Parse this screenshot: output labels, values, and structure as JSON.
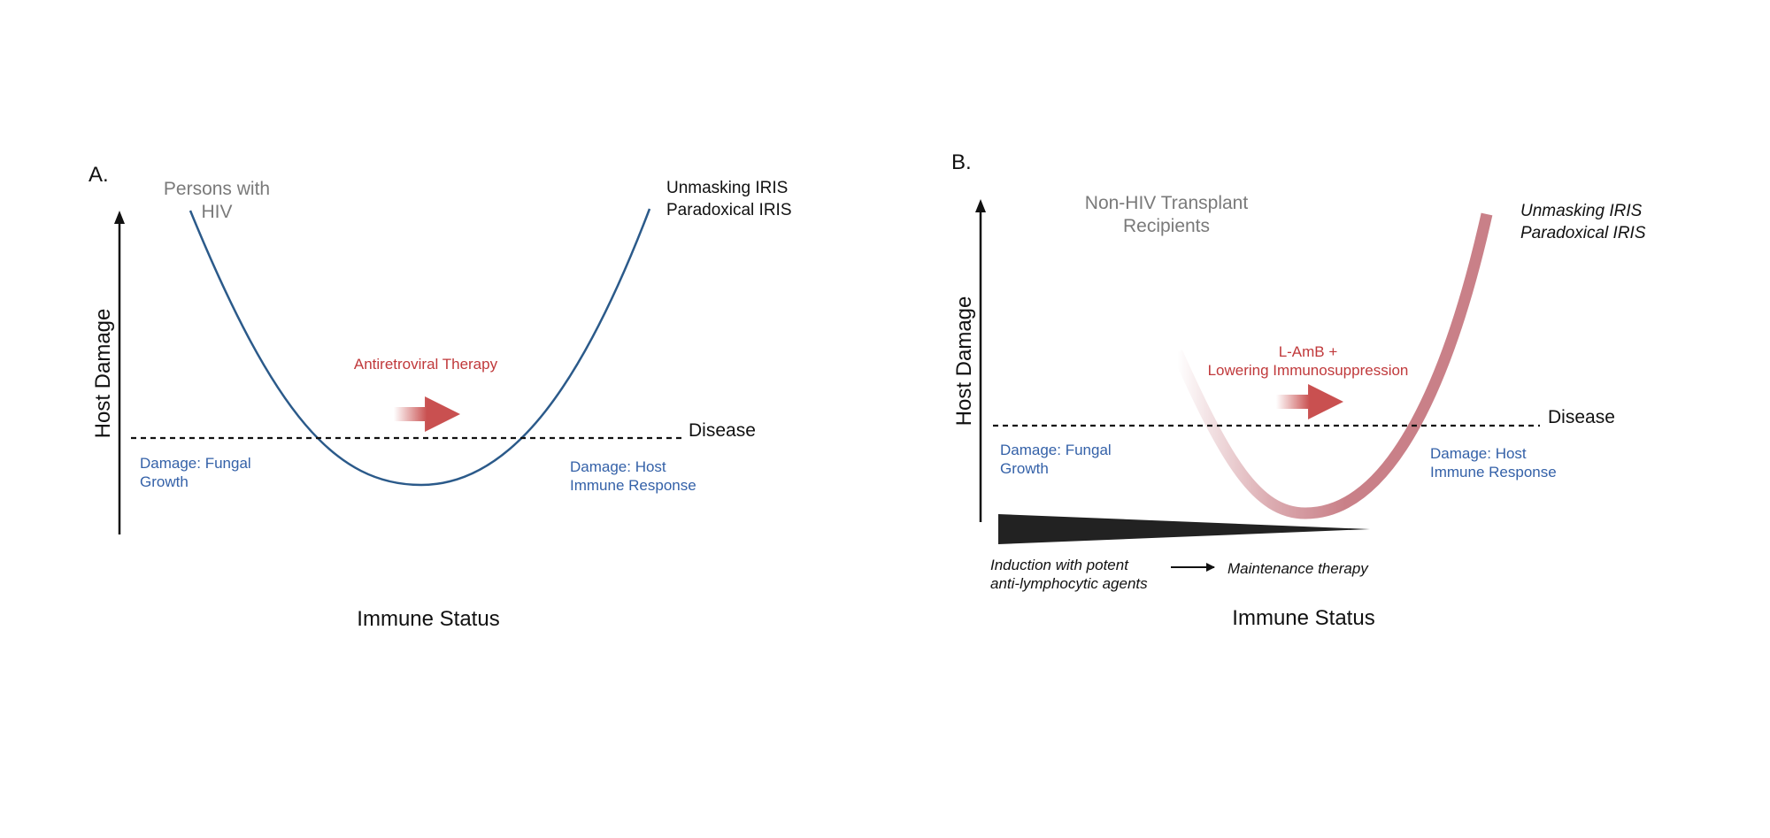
{
  "panels": {
    "a": {
      "letter": "A.",
      "population": [
        "Persons with",
        "HIV"
      ],
      "iris": [
        "Unmasking IRIS",
        "Paradoxical IRIS"
      ],
      "therapy": "Antiretroviral Therapy",
      "threshold": "Disease",
      "left_damage": [
        "Damage: Fungal",
        "Growth"
      ],
      "right_damage": [
        "Damage: Host",
        "Immune Response"
      ],
      "y_axis": "Host Damage",
      "x_axis": "Immune Status"
    },
    "b": {
      "letter": "B.",
      "population": [
        "Non-HIV Transplant",
        "Recipients"
      ],
      "iris": [
        "Unmasking IRIS",
        "Paradoxical IRIS"
      ],
      "therapy": [
        "L-AmB +",
        "Lowering Immunosuppression"
      ],
      "threshold": "Disease",
      "left_damage": [
        "Damage: Fungal",
        "Growth"
      ],
      "right_damage": [
        "Damage: Host",
        "Immune Response"
      ],
      "y_axis": "Host Damage",
      "x_axis": "Immune Status",
      "induction": [
        "Induction with potent",
        "anti-lymphocytic agents"
      ],
      "maintenance": "Maintenance therapy"
    }
  },
  "colors": {
    "curve_a": "#2b5a8a",
    "curve_b": "#c98088",
    "therapy_red": "#c0393b",
    "arrow_red": "#c95050",
    "damage_blue": "#3461a8",
    "population_gray": "#7a7a7a",
    "text": "#111111"
  }
}
